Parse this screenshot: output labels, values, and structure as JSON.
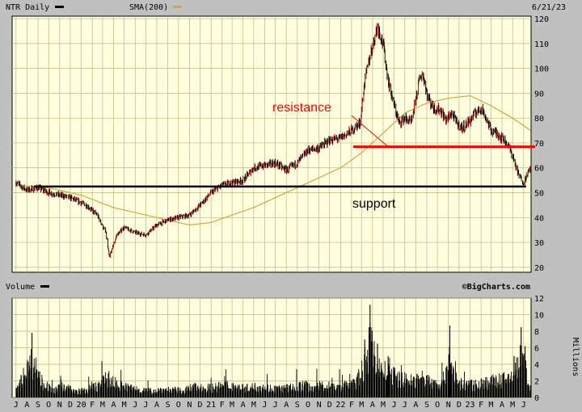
{
  "header": {
    "symbol_label": "NTR Daily",
    "sma_label": "SMA(200)",
    "date": "6/21/23"
  },
  "volume_header": {
    "label": "Volume"
  },
  "watermark": "©BigCharts.com",
  "colors": {
    "background": "#c0c0c0",
    "panel": "#ffffe0",
    "grid": "#b8b87e",
    "price": "#000000",
    "price_up": "#8b0000",
    "sma": "#d4a640",
    "support": "#000000",
    "resistance": "#ff0000"
  },
  "annotations": {
    "resistance_label": "resistance",
    "support_label": "support"
  },
  "chart_data": {
    "type": "line",
    "title": "NTR Daily",
    "series": [
      {
        "name": "NTR Daily",
        "points": [
          [
            "2019-07-01",
            54
          ],
          [
            "2019-08-01",
            51
          ],
          [
            "2019-09-01",
            52
          ],
          [
            "2019-10-01",
            50
          ],
          [
            "2019-11-01",
            49
          ],
          [
            "2019-12-01",
            48
          ],
          [
            "2020-01-15",
            45
          ],
          [
            "2020-02-15",
            41
          ],
          [
            "2020-03-10",
            34
          ],
          [
            "2020-03-20",
            24
          ],
          [
            "2020-04-10",
            33
          ],
          [
            "2020-05-01",
            36
          ],
          [
            "2020-06-01",
            34
          ],
          [
            "2020-07-01",
            33
          ],
          [
            "2020-08-01",
            37
          ],
          [
            "2020-09-01",
            39
          ],
          [
            "2020-10-01",
            40
          ],
          [
            "2020-11-01",
            41
          ],
          [
            "2020-12-01",
            45
          ],
          [
            "2021-01-01",
            50
          ],
          [
            "2021-02-01",
            53
          ],
          [
            "2021-03-01",
            54
          ],
          [
            "2021-04-01",
            55
          ],
          [
            "2021-05-01",
            60
          ],
          [
            "2021-06-01",
            61
          ],
          [
            "2021-07-01",
            62
          ],
          [
            "2021-08-01",
            59
          ],
          [
            "2021-09-01",
            62
          ],
          [
            "2021-10-01",
            67
          ],
          [
            "2021-11-01",
            68
          ],
          [
            "2021-12-01",
            71
          ],
          [
            "2022-01-01",
            72
          ],
          [
            "2022-02-01",
            75
          ],
          [
            "2022-02-25",
            78
          ],
          [
            "2022-03-10",
            95
          ],
          [
            "2022-03-25",
            105
          ],
          [
            "2022-04-15",
            117
          ],
          [
            "2022-05-01",
            110
          ],
          [
            "2022-05-15",
            95
          ],
          [
            "2022-06-01",
            85
          ],
          [
            "2022-06-15",
            78
          ],
          [
            "2022-07-01",
            80
          ],
          [
            "2022-07-20",
            78
          ],
          [
            "2022-08-10",
            95
          ],
          [
            "2022-08-20",
            98
          ],
          [
            "2022-09-05",
            88
          ],
          [
            "2022-09-20",
            84
          ],
          [
            "2022-10-10",
            83
          ],
          [
            "2022-10-25",
            79
          ],
          [
            "2022-11-10",
            82
          ],
          [
            "2022-11-25",
            78
          ],
          [
            "2022-12-10",
            76
          ],
          [
            "2023-01-01",
            79
          ],
          [
            "2023-01-15",
            82
          ],
          [
            "2023-02-01",
            84
          ],
          [
            "2023-02-15",
            80
          ],
          [
            "2023-03-01",
            75
          ],
          [
            "2023-03-15",
            74
          ],
          [
            "2023-04-01",
            72
          ],
          [
            "2023-04-15",
            70
          ],
          [
            "2023-05-01",
            65
          ],
          [
            "2023-05-15",
            58
          ],
          [
            "2023-06-01",
            54
          ],
          [
            "2023-06-10",
            57
          ],
          [
            "2023-06-21",
            60
          ]
        ]
      },
      {
        "name": "SMA(200)",
        "points": [
          [
            "2019-07-01",
            53
          ],
          [
            "2019-10-01",
            52
          ],
          [
            "2020-01-01",
            49
          ],
          [
            "2020-04-01",
            44
          ],
          [
            "2020-07-01",
            41
          ],
          [
            "2020-09-01",
            39
          ],
          [
            "2020-11-01",
            37
          ],
          [
            "2021-01-01",
            38
          ],
          [
            "2021-03-01",
            41
          ],
          [
            "2021-05-01",
            44
          ],
          [
            "2021-07-01",
            48
          ],
          [
            "2021-09-01",
            52
          ],
          [
            "2021-11-01",
            56
          ],
          [
            "2022-01-01",
            60
          ],
          [
            "2022-03-01",
            66
          ],
          [
            "2022-05-01",
            74
          ],
          [
            "2022-07-01",
            82
          ],
          [
            "2022-09-01",
            86
          ],
          [
            "2022-11-01",
            88
          ],
          [
            "2023-01-01",
            89
          ],
          [
            "2023-03-01",
            85
          ],
          [
            "2023-05-01",
            80
          ],
          [
            "2023-06-21",
            75
          ]
        ]
      }
    ],
    "support_level": 52.5,
    "resistance_level": 68.5,
    "resistance_pointer": [
      [
        "2022-02-01",
        81
      ],
      [
        "2022-05-15",
        68.5
      ]
    ],
    "price_axis": {
      "ticks": [
        20,
        30,
        40,
        50,
        60,
        70,
        80,
        90,
        100,
        110,
        120
      ],
      "range": [
        18,
        121
      ]
    },
    "volume_axis": {
      "label": "Millions",
      "ticks": [
        0,
        2,
        4,
        6,
        8,
        10,
        12
      ],
      "range": [
        0,
        12
      ],
      "volume_profile": [
        [
          "2019-07-01",
          1.5
        ],
        [
          "2019-08-15",
          7.8
        ],
        [
          "2019-09-15",
          3.0
        ],
        [
          "2019-10-15",
          1.4
        ],
        [
          "2019-11-15",
          2.5
        ],
        [
          "2019-12-15",
          1.2
        ],
        [
          "2020-01-15",
          1.6
        ],
        [
          "2020-02-15",
          2.5
        ],
        [
          "2020-03-15",
          4.0
        ],
        [
          "2020-04-15",
          2.6
        ],
        [
          "2020-05-15",
          2.1
        ],
        [
          "2020-06-15",
          1.7
        ],
        [
          "2020-07-15",
          1.4
        ],
        [
          "2020-08-15",
          1.7
        ],
        [
          "2020-09-15",
          1.6
        ],
        [
          "2020-10-15",
          1.5
        ],
        [
          "2020-11-15",
          2.2
        ],
        [
          "2020-12-15",
          2.0
        ],
        [
          "2021-01-15",
          2.2
        ],
        [
          "2021-02-15",
          2.6
        ],
        [
          "2021-03-15",
          2.2
        ],
        [
          "2021-04-15",
          2.0
        ],
        [
          "2021-05-15",
          2.4
        ],
        [
          "2021-06-15",
          2.0
        ],
        [
          "2021-07-15",
          1.9
        ],
        [
          "2021-08-15",
          2.1
        ],
        [
          "2021-09-15",
          2.6
        ],
        [
          "2021-10-15",
          2.3
        ],
        [
          "2021-11-15",
          2.5
        ],
        [
          "2021-12-15",
          2.3
        ],
        [
          "2022-01-15",
          2.6
        ],
        [
          "2022-02-15",
          3.2
        ],
        [
          "2022-03-10",
          7.0
        ],
        [
          "2022-03-25",
          11.2
        ],
        [
          "2022-04-15",
          6.5
        ],
        [
          "2022-05-15",
          5.0
        ],
        [
          "2022-06-15",
          4.2
        ],
        [
          "2022-07-15",
          3.5
        ],
        [
          "2022-08-15",
          4.2
        ],
        [
          "2022-09-15",
          3.2
        ],
        [
          "2022-10-15",
          3.0
        ],
        [
          "2022-11-05",
          8.7
        ],
        [
          "2022-11-25",
          3.2
        ],
        [
          "2022-12-15",
          2.6
        ],
        [
          "2023-01-15",
          2.8
        ],
        [
          "2023-02-15",
          3.2
        ],
        [
          "2023-03-15",
          3.5
        ],
        [
          "2023-04-15",
          3.8
        ],
        [
          "2023-05-05",
          5.0
        ],
        [
          "2023-05-25",
          8.5
        ],
        [
          "2023-06-05",
          6.2
        ],
        [
          "2023-06-21",
          2.0
        ]
      ]
    },
    "x_axis": {
      "range": [
        "2019-06-20",
        "2023-06-22"
      ],
      "ticks": [
        [
          "2019-07-01",
          "J"
        ],
        [
          "2019-08-01",
          "A"
        ],
        [
          "2019-09-01",
          "S"
        ],
        [
          "2019-10-01",
          "O"
        ],
        [
          "2019-11-01",
          "N"
        ],
        [
          "2019-12-01",
          "D"
        ],
        [
          "2020-01-01",
          "20"
        ],
        [
          "2020-02-01",
          "F"
        ],
        [
          "2020-03-01",
          "M"
        ],
        [
          "2020-04-01",
          "A"
        ],
        [
          "2020-05-01",
          "M"
        ],
        [
          "2020-06-01",
          "J"
        ],
        [
          "2020-07-01",
          "J"
        ],
        [
          "2020-08-01",
          "A"
        ],
        [
          "2020-09-01",
          "S"
        ],
        [
          "2020-10-01",
          "O"
        ],
        [
          "2020-11-01",
          "N"
        ],
        [
          "2020-12-01",
          "D"
        ],
        [
          "2021-01-01",
          "21"
        ],
        [
          "2021-02-01",
          "F"
        ],
        [
          "2021-03-01",
          "M"
        ],
        [
          "2021-04-01",
          "A"
        ],
        [
          "2021-05-01",
          "M"
        ],
        [
          "2021-06-01",
          "J"
        ],
        [
          "2021-07-01",
          "J"
        ],
        [
          "2021-08-01",
          "A"
        ],
        [
          "2021-09-01",
          "S"
        ],
        [
          "2021-10-01",
          "O"
        ],
        [
          "2021-11-01",
          "N"
        ],
        [
          "2021-12-01",
          "D"
        ],
        [
          "2022-01-01",
          "22"
        ],
        [
          "2022-02-01",
          "F"
        ],
        [
          "2022-03-01",
          "M"
        ],
        [
          "2022-04-01",
          "A"
        ],
        [
          "2022-05-01",
          "M"
        ],
        [
          "2022-06-01",
          "J"
        ],
        [
          "2022-07-01",
          "J"
        ],
        [
          "2022-08-01",
          "A"
        ],
        [
          "2022-09-01",
          "S"
        ],
        [
          "2022-10-01",
          "O"
        ],
        [
          "2022-11-01",
          "N"
        ],
        [
          "2022-12-01",
          "D"
        ],
        [
          "2023-01-01",
          "23"
        ],
        [
          "2023-02-01",
          "F"
        ],
        [
          "2023-03-01",
          "M"
        ],
        [
          "2023-04-01",
          "A"
        ],
        [
          "2023-05-01",
          "M"
        ],
        [
          "2023-06-01",
          "J"
        ]
      ]
    },
    "grid": true
  }
}
